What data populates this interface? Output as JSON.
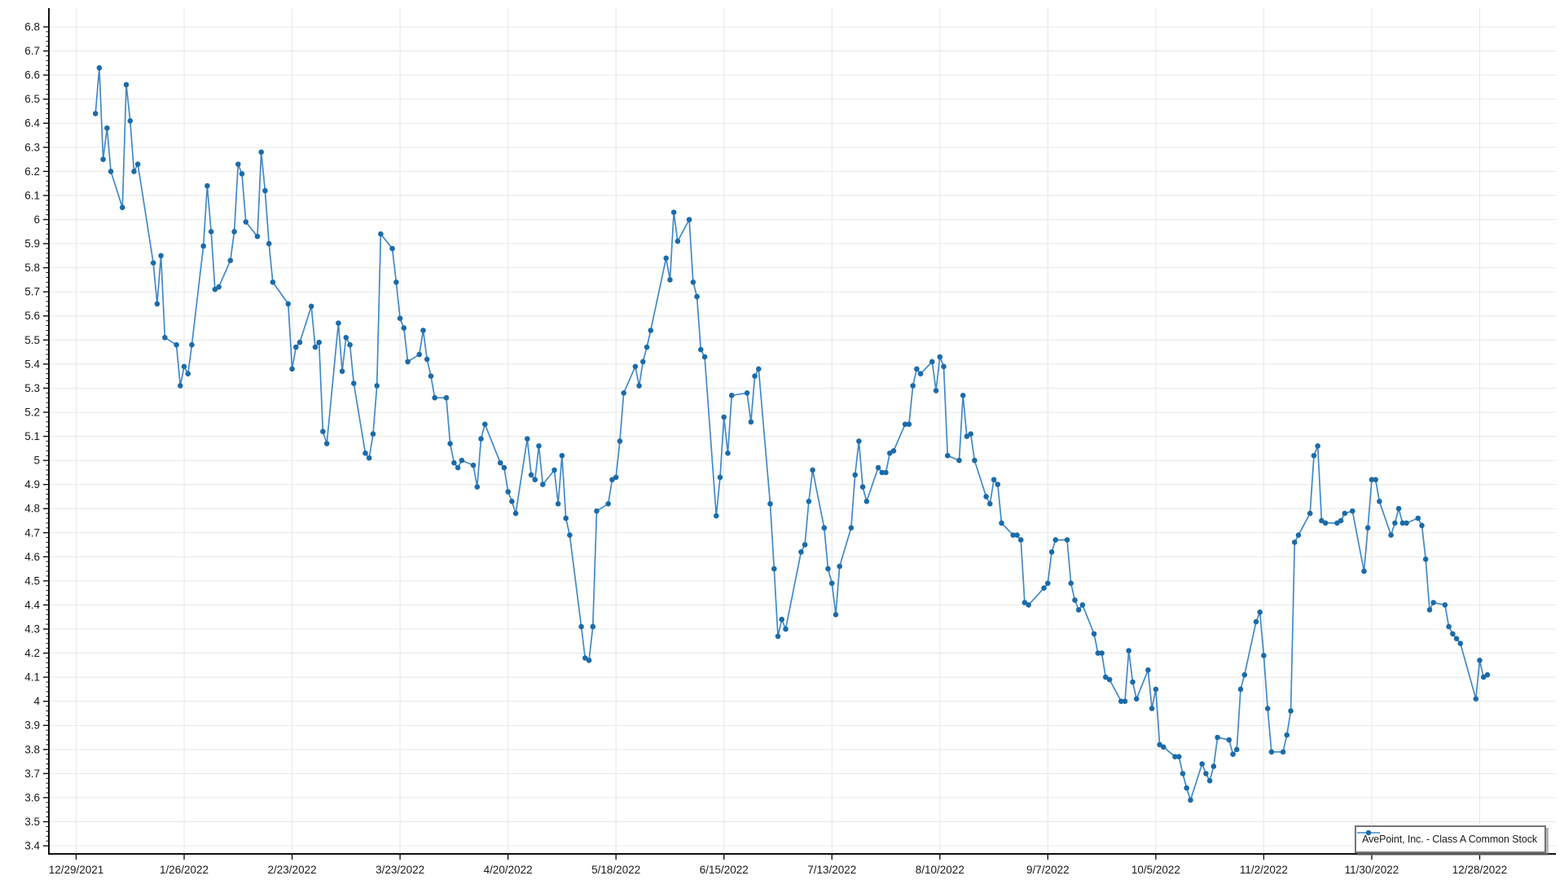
{
  "chart": {
    "legend_label": "AvePoint, Inc. - Class A Common Stock",
    "colors": {
      "line": "#4289c8",
      "marker": "#1b6ba8",
      "grid": "#e7e7e7",
      "axis": "#111111",
      "tick_text": "#1a1a1a",
      "legend_border": "#767676",
      "background": "#ffffff"
    }
  },
  "chart_data": {
    "type": "line",
    "title": "",
    "xlabel": "",
    "ylabel": "",
    "grid": true,
    "marker": "circle",
    "legend_position": "bottom-right",
    "ylim": [
      3.37,
      6.88
    ],
    "y_tick_labels": [
      "6.8",
      "6.7",
      "6.6",
      "6.5",
      "6.4",
      "6.3",
      "6.2",
      "6.1",
      "6",
      "5.9",
      "5.8",
      "5.7",
      "5.6",
      "5.5",
      "5.4",
      "5.3",
      "5.2",
      "5.1",
      "5",
      "4.9",
      "4.8",
      "4.7",
      "4.6",
      "4.5",
      "4.4",
      "4.3",
      "4.2",
      "4.1",
      "4",
      "3.9",
      "3.8",
      "3.7",
      "3.6",
      "3.5",
      "3.4"
    ],
    "x_tick_labels": [
      "12/29/2021",
      "1/26/2022",
      "2/23/2022",
      "3/23/2022",
      "4/20/2022",
      "5/18/2022",
      "6/15/2022",
      "7/13/2022",
      "8/10/2022",
      "9/7/2022",
      "10/5/2022",
      "11/2/2022",
      "11/30/2022",
      "12/28/2022"
    ],
    "series": [
      {
        "name": "AvePoint, Inc. - Class A Common Stock",
        "x": [
          "2022-01-03",
          "2022-01-04",
          "2022-01-05",
          "2022-01-06",
          "2022-01-07",
          "2022-01-10",
          "2022-01-11",
          "2022-01-12",
          "2022-01-13",
          "2022-01-14",
          "2022-01-18",
          "2022-01-19",
          "2022-01-20",
          "2022-01-21",
          "2022-01-24",
          "2022-01-25",
          "2022-01-26",
          "2022-01-27",
          "2022-01-28",
          "2022-01-31",
          "2022-02-01",
          "2022-02-02",
          "2022-02-03",
          "2022-02-04",
          "2022-02-07",
          "2022-02-08",
          "2022-02-09",
          "2022-02-10",
          "2022-02-11",
          "2022-02-14",
          "2022-02-15",
          "2022-02-16",
          "2022-02-17",
          "2022-02-18",
          "2022-02-22",
          "2022-02-23",
          "2022-02-24",
          "2022-02-25",
          "2022-02-28",
          "2022-03-01",
          "2022-03-02",
          "2022-03-03",
          "2022-03-04",
          "2022-03-07",
          "2022-03-08",
          "2022-03-09",
          "2022-03-10",
          "2022-03-11",
          "2022-03-14",
          "2022-03-15",
          "2022-03-16",
          "2022-03-17",
          "2022-03-18",
          "2022-03-21",
          "2022-03-22",
          "2022-03-23",
          "2022-03-24",
          "2022-03-25",
          "2022-03-28",
          "2022-03-29",
          "2022-03-30",
          "2022-03-31",
          "2022-04-01",
          "2022-04-04",
          "2022-04-05",
          "2022-04-06",
          "2022-04-07",
          "2022-04-08",
          "2022-04-11",
          "2022-04-12",
          "2022-04-13",
          "2022-04-14",
          "2022-04-18",
          "2022-04-19",
          "2022-04-20",
          "2022-04-21",
          "2022-04-22",
          "2022-04-25",
          "2022-04-26",
          "2022-04-27",
          "2022-04-28",
          "2022-04-29",
          "2022-05-02",
          "2022-05-03",
          "2022-05-04",
          "2022-05-05",
          "2022-05-06",
          "2022-05-09",
          "2022-05-10",
          "2022-05-11",
          "2022-05-12",
          "2022-05-13",
          "2022-05-16",
          "2022-05-17",
          "2022-05-18",
          "2022-05-19",
          "2022-05-20",
          "2022-05-23",
          "2022-05-24",
          "2022-05-25",
          "2022-05-26",
          "2022-05-27",
          "2022-05-31",
          "2022-06-01",
          "2022-06-02",
          "2022-06-03",
          "2022-06-06",
          "2022-06-07",
          "2022-06-08",
          "2022-06-09",
          "2022-06-10",
          "2022-06-13",
          "2022-06-14",
          "2022-06-15",
          "2022-06-16",
          "2022-06-17",
          "2022-06-21",
          "2022-06-22",
          "2022-06-23",
          "2022-06-24",
          "2022-06-27",
          "2022-06-28",
          "2022-06-29",
          "2022-06-30",
          "2022-07-01",
          "2022-07-05",
          "2022-07-06",
          "2022-07-07",
          "2022-07-08",
          "2022-07-11",
          "2022-07-12",
          "2022-07-13",
          "2022-07-14",
          "2022-07-15",
          "2022-07-18",
          "2022-07-19",
          "2022-07-20",
          "2022-07-21",
          "2022-07-22",
          "2022-07-25",
          "2022-07-26",
          "2022-07-27",
          "2022-07-28",
          "2022-07-29",
          "2022-08-01",
          "2022-08-02",
          "2022-08-03",
          "2022-08-04",
          "2022-08-05",
          "2022-08-08",
          "2022-08-09",
          "2022-08-10",
          "2022-08-11",
          "2022-08-12",
          "2022-08-15",
          "2022-08-16",
          "2022-08-17",
          "2022-08-18",
          "2022-08-19",
          "2022-08-22",
          "2022-08-23",
          "2022-08-24",
          "2022-08-25",
          "2022-08-26",
          "2022-08-29",
          "2022-08-30",
          "2022-08-31",
          "2022-09-01",
          "2022-09-02",
          "2022-09-06",
          "2022-09-07",
          "2022-09-08",
          "2022-09-09",
          "2022-09-12",
          "2022-09-13",
          "2022-09-14",
          "2022-09-15",
          "2022-09-16",
          "2022-09-19",
          "2022-09-20",
          "2022-09-21",
          "2022-09-22",
          "2022-09-23",
          "2022-09-26",
          "2022-09-27",
          "2022-09-28",
          "2022-09-29",
          "2022-09-30",
          "2022-10-03",
          "2022-10-04",
          "2022-10-05",
          "2022-10-06",
          "2022-10-07",
          "2022-10-10",
          "2022-10-11",
          "2022-10-12",
          "2022-10-13",
          "2022-10-14",
          "2022-10-17",
          "2022-10-18",
          "2022-10-19",
          "2022-10-20",
          "2022-10-21",
          "2022-10-24",
          "2022-10-25",
          "2022-10-26",
          "2022-10-27",
          "2022-10-28",
          "2022-10-31",
          "2022-11-01",
          "2022-11-02",
          "2022-11-03",
          "2022-11-04",
          "2022-11-07",
          "2022-11-08",
          "2022-11-09",
          "2022-11-10",
          "2022-11-11",
          "2022-11-14",
          "2022-11-15",
          "2022-11-16",
          "2022-11-17",
          "2022-11-18",
          "2022-11-21",
          "2022-11-22",
          "2022-11-23",
          "2022-11-25",
          "2022-11-28",
          "2022-11-29",
          "2022-11-30",
          "2022-12-01",
          "2022-12-02",
          "2022-12-05",
          "2022-12-06",
          "2022-12-07",
          "2022-12-08",
          "2022-12-09",
          "2022-12-12",
          "2022-12-13",
          "2022-12-14",
          "2022-12-15",
          "2022-12-16",
          "2022-12-19",
          "2022-12-20",
          "2022-12-21",
          "2022-12-22",
          "2022-12-23",
          "2022-12-27",
          "2022-12-28",
          "2022-12-29",
          "2022-12-30"
        ],
        "values": [
          6.44,
          6.63,
          6.25,
          6.38,
          6.2,
          6.05,
          6.56,
          6.41,
          6.2,
          6.23,
          5.82,
          5.65,
          5.85,
          5.51,
          5.48,
          5.31,
          5.39,
          5.36,
          5.48,
          5.89,
          6.14,
          5.95,
          5.71,
          5.72,
          5.83,
          5.95,
          6.23,
          6.19,
          5.99,
          5.93,
          6.28,
          6.12,
          5.9,
          5.74,
          5.65,
          5.38,
          5.47,
          5.49,
          5.64,
          5.47,
          5.49,
          5.12,
          5.07,
          5.57,
          5.37,
          5.51,
          5.48,
          5.32,
          5.03,
          5.01,
          5.11,
          5.31,
          5.94,
          5.88,
          5.74,
          5.59,
          5.55,
          5.41,
          5.44,
          5.54,
          5.42,
          5.35,
          5.26,
          5.26,
          5.07,
          4.99,
          4.97,
          5.0,
          4.98,
          4.89,
          5.09,
          5.15,
          4.99,
          4.97,
          4.87,
          4.83,
          4.78,
          5.09,
          4.94,
          4.92,
          5.06,
          4.9,
          4.96,
          4.82,
          5.02,
          4.76,
          4.69,
          4.31,
          4.18,
          4.17,
          4.31,
          4.79,
          4.82,
          4.92,
          4.93,
          5.08,
          5.28,
          5.39,
          5.31,
          5.41,
          5.47,
          5.54,
          5.84,
          5.75,
          6.03,
          5.91,
          6.0,
          5.74,
          5.68,
          5.46,
          5.43,
          4.77,
          4.93,
          5.18,
          5.03,
          5.27,
          5.28,
          5.16,
          5.35,
          5.38,
          4.82,
          4.55,
          4.27,
          4.34,
          4.3,
          4.62,
          4.65,
          4.83,
          4.96,
          4.72,
          4.55,
          4.49,
          4.36,
          4.56,
          4.72,
          4.94,
          5.08,
          4.89,
          4.83,
          4.97,
          4.95,
          4.95,
          5.03,
          5.04,
          5.15,
          5.15,
          5.31,
          5.38,
          5.36,
          5.41,
          5.29,
          5.43,
          5.39,
          5.02,
          5.0,
          5.27,
          5.1,
          5.11,
          5.0,
          4.85,
          4.82,
          4.92,
          4.9,
          4.74,
          4.69,
          4.69,
          4.67,
          4.41,
          4.4,
          4.47,
          4.49,
          4.62,
          4.67,
          4.67,
          4.49,
          4.42,
          4.38,
          4.4,
          4.28,
          4.2,
          4.2,
          4.1,
          4.09,
          4.0,
          4.0,
          4.21,
          4.08,
          4.01,
          4.13,
          3.97,
          4.05,
          3.82,
          3.81,
          3.77,
          3.77,
          3.7,
          3.64,
          3.59,
          3.74,
          3.7,
          3.67,
          3.73,
          3.85,
          3.84,
          3.78,
          3.8,
          4.05,
          4.11,
          4.33,
          4.37,
          4.19,
          3.97,
          3.79,
          3.79,
          3.86,
          3.96,
          4.66,
          4.69,
          4.78,
          5.02,
          5.06,
          4.75,
          4.74,
          4.74,
          4.75,
          4.78,
          4.79,
          4.54,
          4.72,
          4.92,
          4.92,
          4.83,
          4.69,
          4.74,
          4.8,
          4.74,
          4.74,
          4.76,
          4.73,
          4.59,
          4.38,
          4.41,
          4.4,
          4.31,
          4.28,
          4.26,
          4.24,
          4.01,
          4.17,
          4.1,
          4.11
        ]
      }
    ]
  }
}
